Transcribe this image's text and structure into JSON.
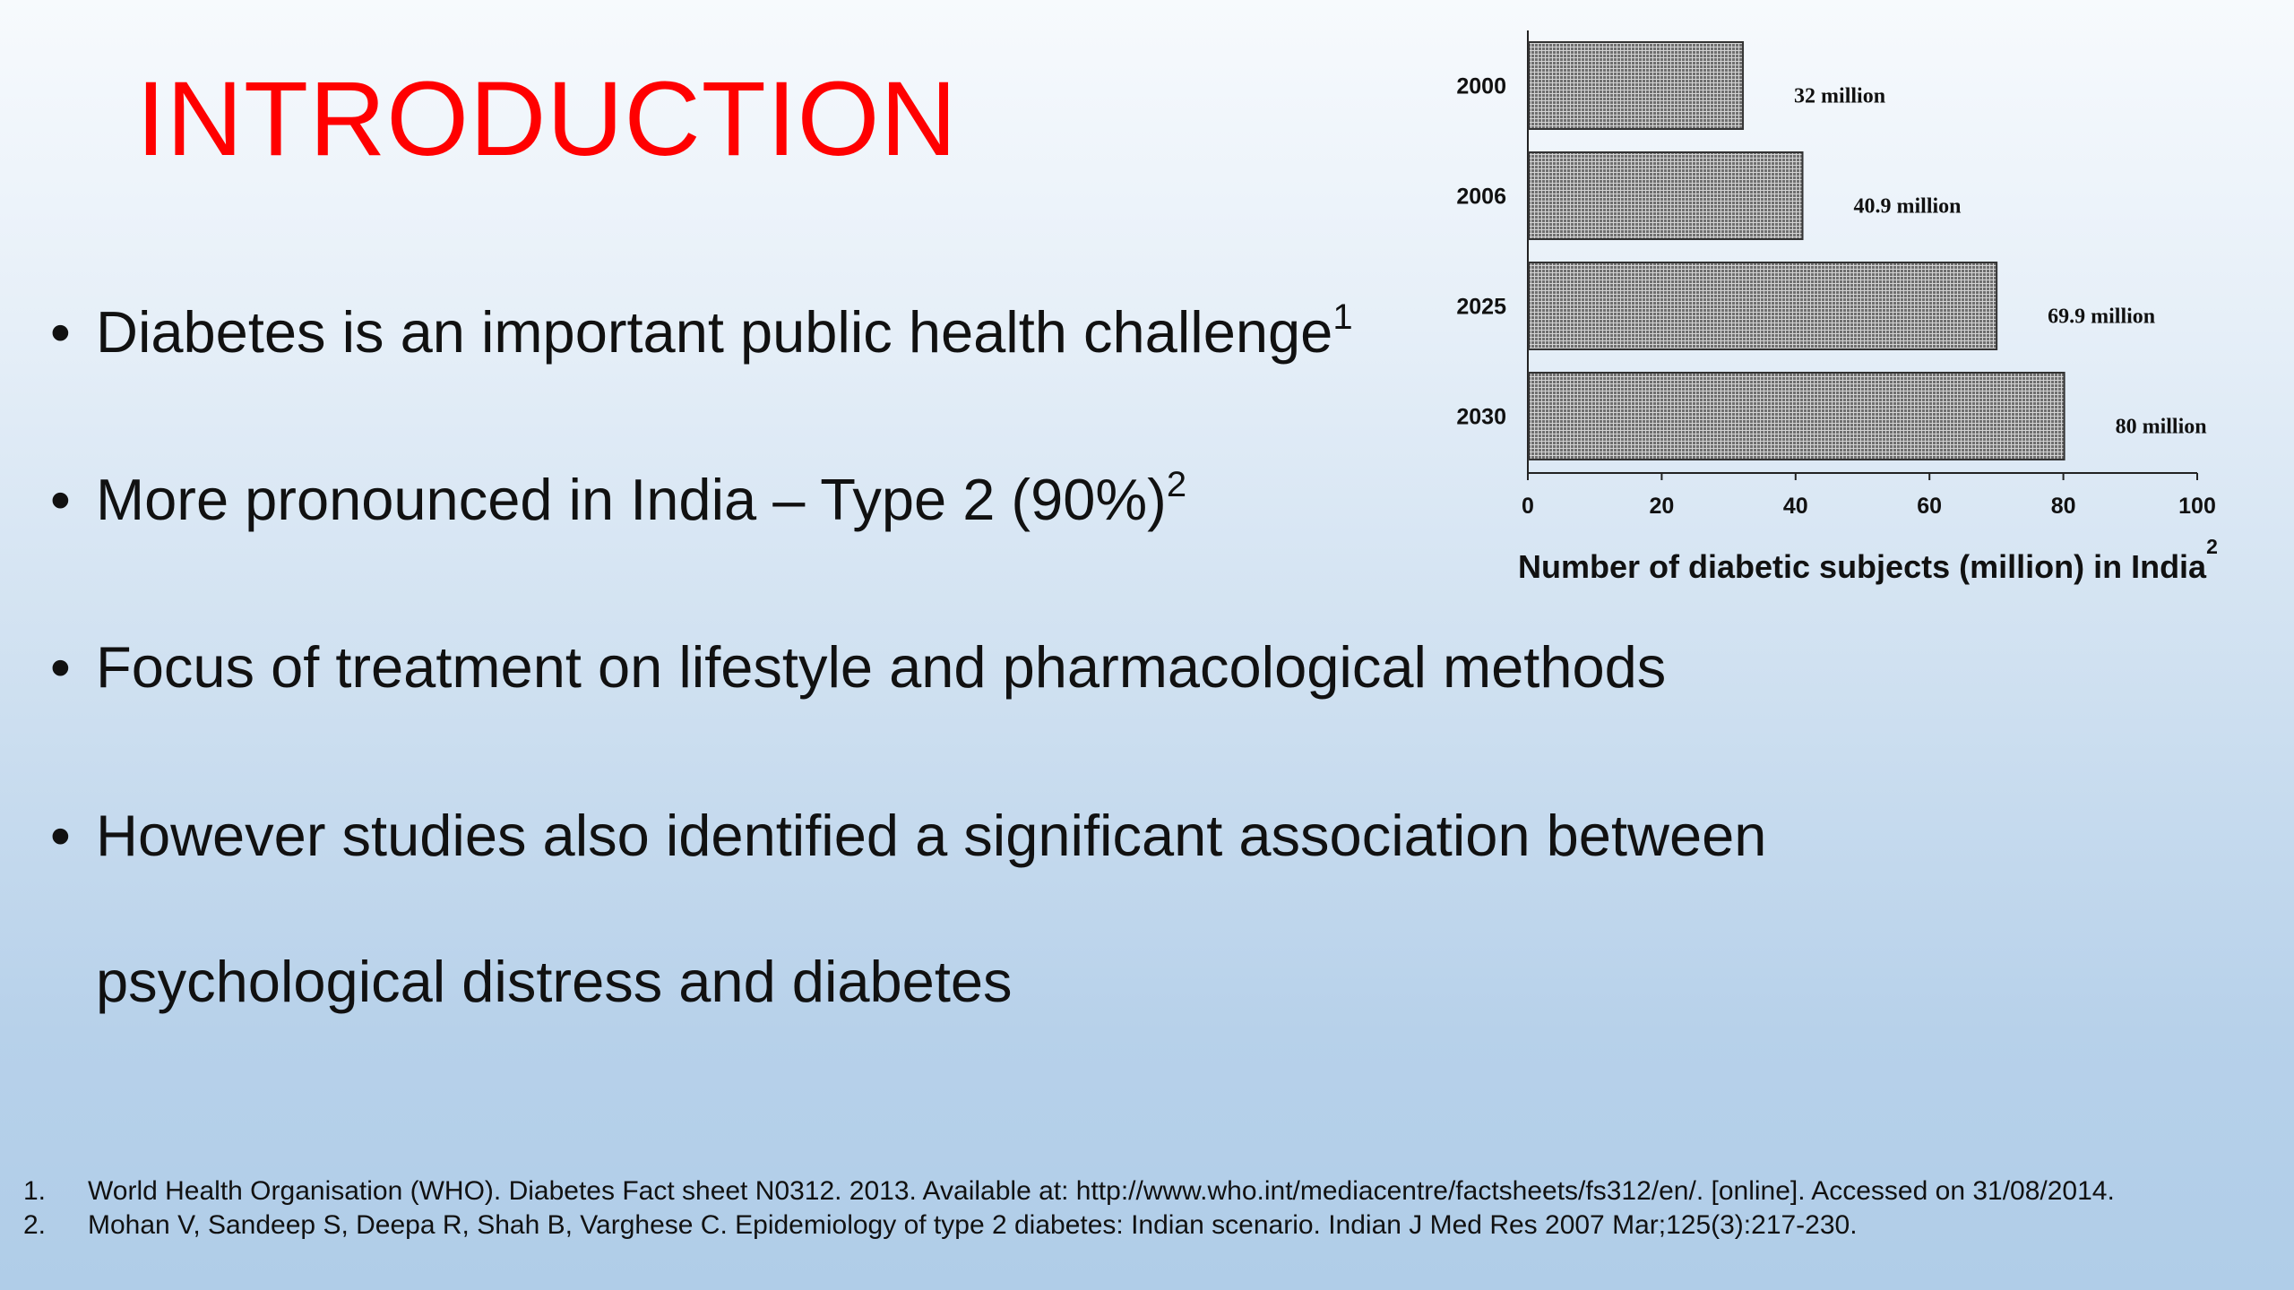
{
  "slide": {
    "title": "INTRODUCTION",
    "bullet_glyph": "•",
    "bullets": [
      {
        "text": "Diabetes is an important public health challenge",
        "sup": "1"
      },
      {
        "text": "More pronounced in India – Type 2 (90%)",
        "sup": "2"
      },
      {
        "text": "Focus of treatment on lifestyle and pharmacological methods",
        "sup": ""
      },
      {
        "text": "However studies also identified a significant association between",
        "sup": ""
      }
    ],
    "bullet_continuation": "psychological distress and diabetes",
    "chart_caption": "Number of diabetic subjects (million) in India",
    "chart_caption_sup": "2",
    "references": [
      {
        "num": "1.",
        "text": "World Health Organisation (WHO). Diabetes Fact sheet N0312. 2013. Available at: http://www.who.int/mediacentre/factsheets/fs312/en/. [online]. Accessed on 31/08/2014."
      },
      {
        "num": "2.",
        "text": "Mohan V, Sandeep S, Deepa R, Shah B, Varghese C. Epidemiology of type 2 diabetes: Indian scenario. Indian J Med Res 2007 Mar;125(3):217-230."
      }
    ],
    "colors": {
      "title": "#ff0000",
      "text": "#111111",
      "bar_fill": "#6f6f6f"
    }
  },
  "chart_data": {
    "type": "bar",
    "orientation": "horizontal",
    "categories": [
      "2000",
      "2006",
      "2025",
      "2030"
    ],
    "values": [
      32,
      40.9,
      69.9,
      80
    ],
    "data_labels": [
      "32 million",
      "40.9 million",
      "69.9 million",
      "80 million"
    ],
    "xlim": [
      0,
      100
    ],
    "x_ticks": [
      "0",
      "20",
      "40",
      "60",
      "80",
      "100"
    ],
    "x_tick_values": [
      0,
      20,
      40,
      60,
      80,
      100
    ],
    "grid": false,
    "legend": "none"
  }
}
